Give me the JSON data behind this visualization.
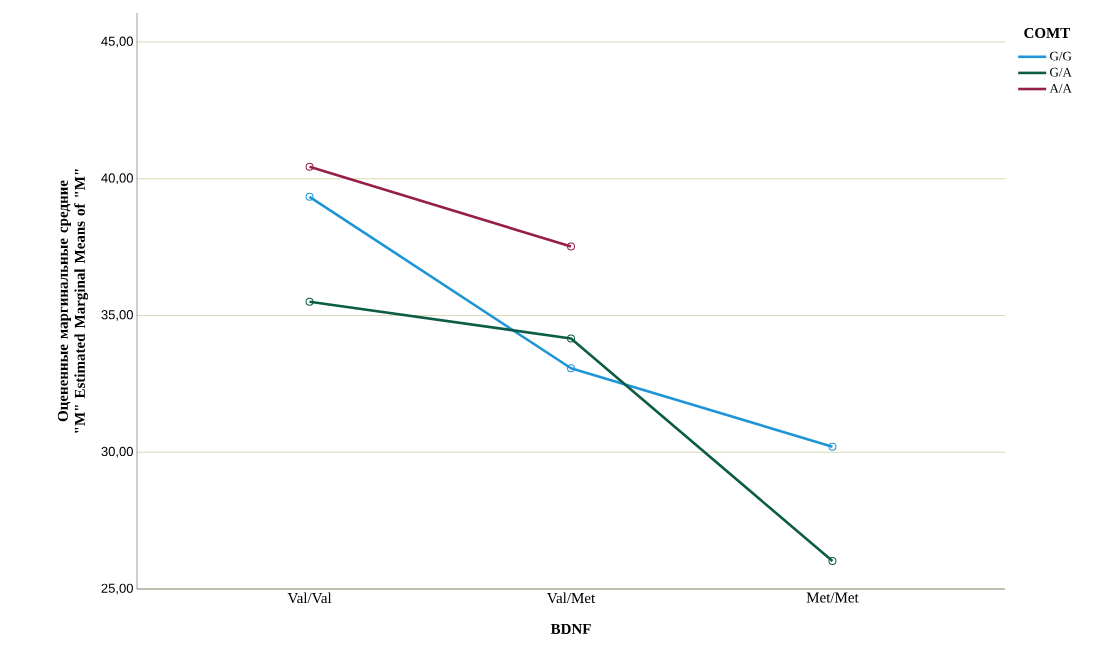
{
  "chart_data": {
    "type": "line",
    "xlabel": "BDNF",
    "ylabel": "Оцененные маргинальные средние \"M\" Estimated Marginal Means of \"M\"",
    "legend_title": "COMT",
    "categories": [
      "Val/Val",
      "Val/Met",
      "Met/Met"
    ],
    "series": [
      {
        "name": "G/G",
        "color": "#1f95d8",
        "values": [
          39.34,
          33.07,
          30.2
        ]
      },
      {
        "name": "G/A",
        "color": "#0d5c45",
        "values": [
          35.5,
          34.16,
          26.02
        ]
      },
      {
        "name": "A/A",
        "color": "#961e4a",
        "values": [
          40.44,
          37.52,
          null
        ]
      }
    ],
    "ylim": [
      25,
      46.06
    ],
    "yticks": [
      {
        "value": 25,
        "label": "25,00"
      },
      {
        "value": 30,
        "label": "30,00"
      },
      {
        "value": 35,
        "label": "35,00"
      },
      {
        "value": 40,
        "label": "40,00"
      },
      {
        "value": 45,
        "label": "45,00"
      }
    ],
    "grid": "y",
    "legend": "top right",
    "marker": "circle",
    "line_style": "solid"
  }
}
